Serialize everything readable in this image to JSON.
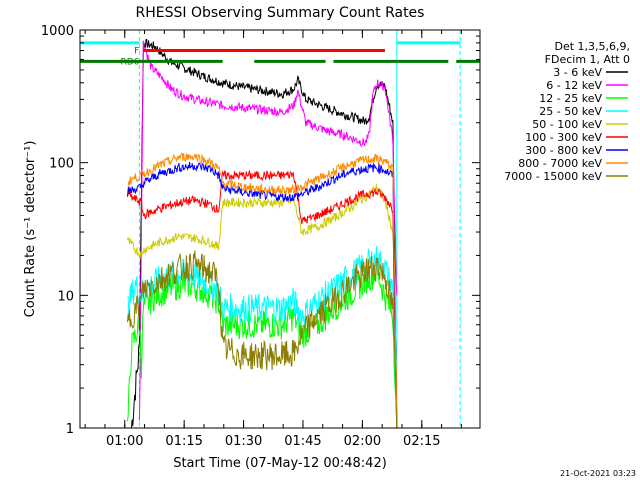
{
  "chart_data": {
    "type": "line",
    "title": "RHESSI Observing Summary Count Rates",
    "xlabel": "Start Time (07-May-12 00:48:42)",
    "ylabel": "Count Rate (s⁻¹ detector⁻¹)",
    "yscale": "log",
    "ylim": [
      1,
      1000
    ],
    "xlim_minutes_after_start": [
      0,
      101
    ],
    "x_tick_labels": [
      "01:00",
      "01:15",
      "01:30",
      "01:45",
      "02:00",
      "02:15"
    ],
    "x_tick_minutes": [
      11.3,
      26.3,
      41.3,
      56.3,
      71.3,
      86.3
    ],
    "y_tick_labels": [
      "1",
      "10",
      "100",
      "1000"
    ],
    "y_tick_values": [
      1,
      10,
      100,
      1000
    ],
    "legend_header": [
      "Det 1,3,5,6,9,",
      "FDecim 1, Att 0"
    ],
    "legend_position": "right",
    "footer_date": "21-Oct-2021 03:23",
    "flags": [
      {
        "label": "F",
        "color": "#ff0000",
        "value": 700,
        "segments": [
          [
            16,
            77
          ]
        ]
      },
      {
        "label": "RD6",
        "color": "#007700",
        "value": 580,
        "segments": [
          [
            0,
            16
          ],
          [
            16,
            36
          ],
          [
            44,
            62
          ],
          [
            64,
            93
          ],
          [
            95,
            101
          ]
        ]
      }
    ],
    "cyan_flag": {
      "color": "#00ffff",
      "value": 800,
      "segments": [
        [
          0,
          15
        ],
        [
          80,
          96
        ]
      ]
    },
    "vertical_markers": [
      {
        "color": "#00ffff",
        "style": "solid",
        "x": 0
      },
      {
        "color": "#00ffff",
        "style": "dashed",
        "x": 15
      },
      {
        "color": "#00ffff",
        "style": "solid",
        "x": 80
      },
      {
        "color": "#00ffff",
        "style": "dashed",
        "x": 96
      }
    ],
    "series": [
      {
        "name": "3 - 6 keV",
        "color": "#000000",
        "x": [
          13,
          15,
          16,
          19,
          21,
          23,
          26,
          31,
          36,
          41,
          46,
          51,
          54,
          55,
          57,
          62,
          67,
          72,
          73,
          74,
          75,
          77,
          79,
          80
        ],
        "y": [
          1,
          4,
          800,
          750,
          650,
          570,
          520,
          450,
          400,
          370,
          350,
          330,
          360,
          420,
          300,
          260,
          230,
          205,
          220,
          300,
          390,
          380,
          200,
          1
        ]
      },
      {
        "name": "6 - 12 keV",
        "color": "#ff00ff",
        "x": [
          15,
          16,
          18,
          21,
          23,
          26,
          31,
          36,
          41,
          46,
          51,
          54,
          55,
          57,
          62,
          67,
          72,
          73,
          74,
          75,
          77,
          79,
          80
        ],
        "y": [
          1,
          800,
          520,
          430,
          360,
          320,
          290,
          270,
          260,
          250,
          240,
          270,
          350,
          200,
          175,
          160,
          140,
          160,
          330,
          400,
          370,
          150,
          10
        ]
      },
      {
        "name": "12 - 25 keV",
        "color": "#00ff00",
        "x": [
          12,
          13,
          14,
          15,
          15.5,
          16,
          19,
          22,
          25,
          28,
          31,
          33,
          35,
          36,
          41,
          46,
          51,
          54,
          56,
          60,
          64,
          68,
          72,
          75,
          77,
          79,
          80
        ],
        "y": [
          1,
          4,
          5,
          6,
          3,
          8,
          10,
          11,
          12,
          12,
          11,
          10,
          9,
          6,
          6,
          6,
          6,
          7,
          5,
          6,
          8,
          10,
          13,
          15,
          10,
          7,
          1
        ]
      },
      {
        "name": "25 - 50 keV",
        "color": "#00ffff",
        "x": [
          12,
          13,
          14,
          15.5,
          16,
          20,
          25,
          29,
          33,
          35,
          36,
          41,
          46,
          51,
          54,
          56,
          60,
          64,
          68,
          72,
          75,
          77,
          79,
          80
        ],
        "y": [
          8,
          10,
          12,
          10,
          11,
          13,
          15,
          14,
          12,
          11,
          8,
          8,
          8,
          8,
          9,
          7,
          9,
          11,
          14,
          17,
          19,
          16,
          11,
          1
        ]
      },
      {
        "name": "50 - 100 keV",
        "color": "#cccc00",
        "x": [
          12,
          13,
          15.5,
          16,
          20,
          25,
          29,
          33,
          35,
          36,
          41,
          46,
          51,
          54,
          56,
          60,
          64,
          68,
          72,
          75,
          77,
          79,
          80
        ],
        "y": [
          26,
          24,
          20,
          22,
          25,
          28,
          27,
          25,
          23,
          50,
          50,
          50,
          50,
          52,
          30,
          33,
          38,
          45,
          55,
          65,
          52,
          30,
          1
        ]
      },
      {
        "name": "100 - 300 keV",
        "color": "#ff0000",
        "x": [
          12,
          13,
          15.5,
          16,
          20,
          25,
          29,
          33,
          35,
          36,
          41,
          46,
          51,
          54,
          56,
          60,
          64,
          68,
          72,
          75,
          77,
          79,
          80
        ],
        "y": [
          60,
          55,
          50,
          40,
          45,
          50,
          52,
          48,
          44,
          80,
          80,
          80,
          80,
          82,
          36,
          40,
          45,
          52,
          58,
          60,
          55,
          45,
          1
        ]
      },
      {
        "name": "300 - 800 keV",
        "color": "#0000ff",
        "x": [
          12,
          13,
          15.5,
          16,
          20,
          25,
          29,
          33,
          35,
          36,
          41,
          46,
          51,
          54,
          56,
          60,
          64,
          68,
          72,
          75,
          77,
          79,
          80
        ],
        "y": [
          60,
          62,
          65,
          70,
          82,
          92,
          95,
          90,
          80,
          64,
          60,
          57,
          55,
          55,
          58,
          65,
          75,
          85,
          90,
          92,
          88,
          80,
          1
        ]
      },
      {
        "name": "800 - 7000 keV",
        "color": "#ff8c00",
        "x": [
          12,
          13,
          15.5,
          16,
          20,
          25,
          29,
          33,
          35,
          36,
          41,
          46,
          51,
          54,
          56,
          60,
          64,
          68,
          72,
          75,
          77,
          79,
          80
        ],
        "y": [
          70,
          75,
          80,
          82,
          95,
          110,
          112,
          100,
          90,
          70,
          66,
          63,
          62,
          62,
          66,
          75,
          85,
          97,
          105,
          107,
          102,
          90,
          1
        ]
      },
      {
        "name": "7000 - 15000 keV",
        "color": "#8b7d00",
        "x": [
          12,
          13,
          15.5,
          16,
          20,
          25,
          29,
          33,
          35,
          36,
          41,
          46,
          51,
          54,
          56,
          60,
          64,
          68,
          72,
          75,
          77,
          79,
          80
        ],
        "y": [
          6,
          7,
          9,
          11,
          13,
          16,
          17,
          15,
          13,
          4,
          3.5,
          3.5,
          3.5,
          3.6,
          5,
          7,
          9,
          12,
          15,
          17,
          14,
          8,
          1
        ]
      }
    ]
  }
}
